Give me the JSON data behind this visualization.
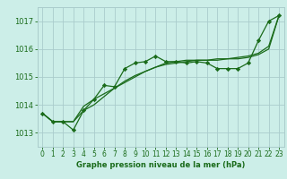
{
  "background_color": "#cceee8",
  "grid_color": "#aacccc",
  "line_color": "#1a6b1a",
  "text_color": "#1a6b1a",
  "xlabel": "Graphe pression niveau de la mer (hPa)",
  "ylim": [
    1012.5,
    1017.5
  ],
  "xlim": [
    -0.5,
    23.5
  ],
  "yticks": [
    1013,
    1014,
    1015,
    1016,
    1017
  ],
  "xticks": [
    0,
    1,
    2,
    3,
    4,
    5,
    6,
    7,
    8,
    9,
    10,
    11,
    12,
    13,
    14,
    15,
    16,
    17,
    18,
    19,
    20,
    21,
    22,
    23
  ],
  "series1": [
    1013.7,
    1013.4,
    1013.4,
    1013.1,
    1013.8,
    1014.2,
    1014.7,
    1014.65,
    1015.3,
    1015.5,
    1015.55,
    1015.75,
    1015.55,
    1015.55,
    1015.5,
    1015.55,
    1015.5,
    1015.3,
    1015.3,
    1015.3,
    1015.5,
    1016.3,
    1017.0,
    1017.2
  ],
  "series2": [
    1013.7,
    1013.4,
    1013.4,
    1013.4,
    1013.8,
    1014.0,
    1014.3,
    1014.6,
    1014.85,
    1015.05,
    1015.2,
    1015.35,
    1015.45,
    1015.5,
    1015.55,
    1015.6,
    1015.6,
    1015.65,
    1015.65,
    1015.65,
    1015.7,
    1015.8,
    1016.0,
    1017.2
  ],
  "series3": [
    1013.7,
    1013.4,
    1013.4,
    1013.4,
    1013.95,
    1014.2,
    1014.4,
    1014.6,
    1014.8,
    1015.0,
    1015.2,
    1015.35,
    1015.5,
    1015.55,
    1015.6,
    1015.6,
    1015.6,
    1015.6,
    1015.65,
    1015.7,
    1015.75,
    1015.85,
    1016.1,
    1017.2
  ]
}
